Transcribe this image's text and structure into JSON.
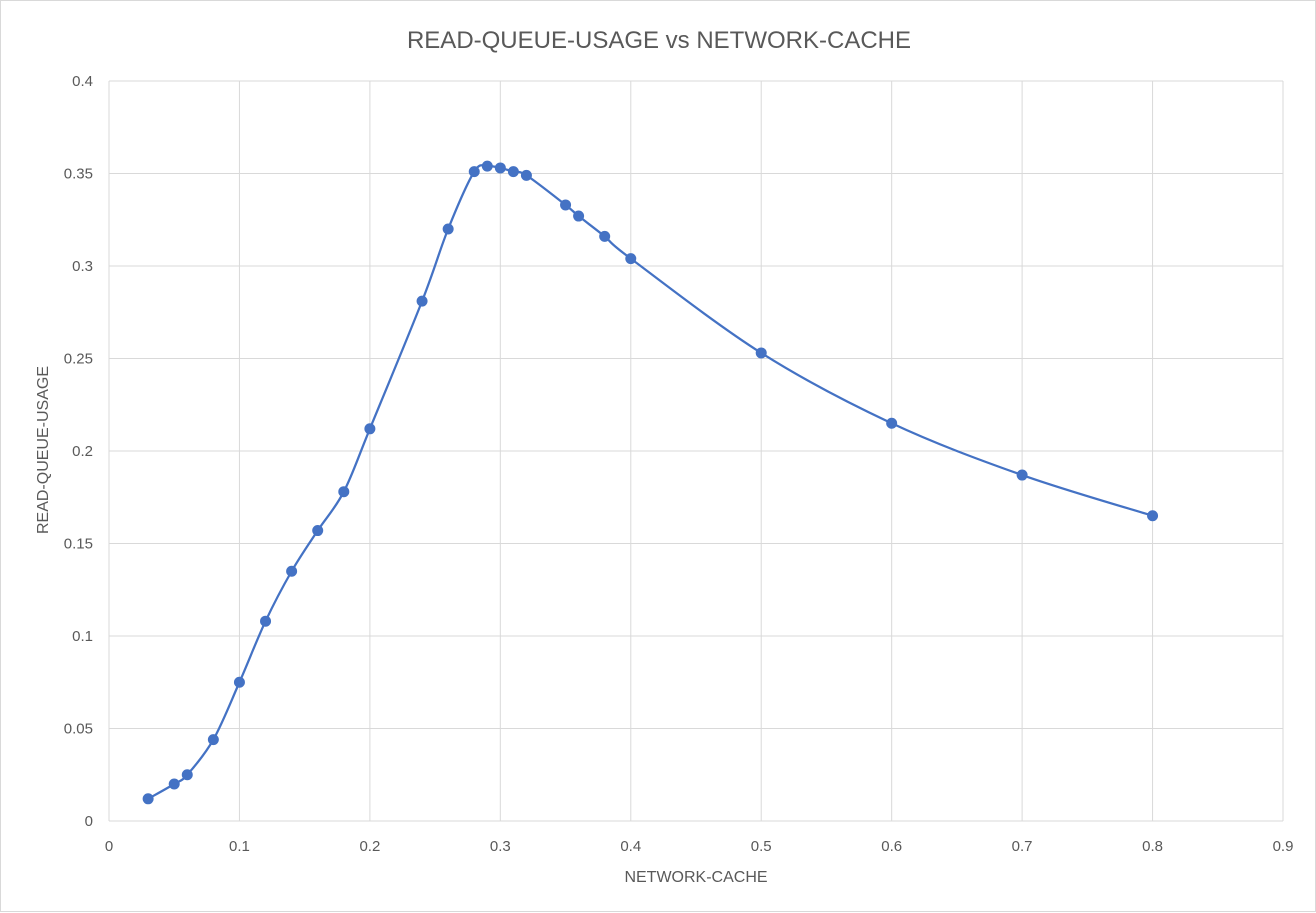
{
  "chart_data": {
    "type": "scatter",
    "title": "READ-QUEUE-USAGE vs NETWORK-CACHE",
    "xlabel": "NETWORK-CACHE",
    "ylabel": "READ-QUEUE-USAGE",
    "xlim": [
      0,
      0.9
    ],
    "ylim": [
      0,
      0.4
    ],
    "x_ticks": [
      0,
      0.1,
      0.2,
      0.3,
      0.4,
      0.5,
      0.6,
      0.7,
      0.8,
      0.9
    ],
    "y_ticks": [
      0,
      0.05,
      0.1,
      0.15,
      0.2,
      0.25,
      0.3,
      0.35,
      0.4
    ],
    "x_tick_labels": [
      "0",
      "0.1",
      "0.2",
      "0.3",
      "0.4",
      "0.5",
      "0.6",
      "0.7",
      "0.8",
      "0.9"
    ],
    "y_tick_labels": [
      "0",
      "0.05",
      "0.1",
      "0.15",
      "0.2",
      "0.25",
      "0.3",
      "0.35",
      "0.4"
    ],
    "grid": true,
    "smooth_line": true,
    "markers": true,
    "legend": "none",
    "series": [
      {
        "color": "#4472C4",
        "points": [
          {
            "x": 0.03,
            "y": 0.012
          },
          {
            "x": 0.05,
            "y": 0.02
          },
          {
            "x": 0.06,
            "y": 0.025
          },
          {
            "x": 0.08,
            "y": 0.044
          },
          {
            "x": 0.1,
            "y": 0.075
          },
          {
            "x": 0.12,
            "y": 0.108
          },
          {
            "x": 0.14,
            "y": 0.135
          },
          {
            "x": 0.16,
            "y": 0.157
          },
          {
            "x": 0.18,
            "y": 0.178
          },
          {
            "x": 0.2,
            "y": 0.212
          },
          {
            "x": 0.24,
            "y": 0.281
          },
          {
            "x": 0.26,
            "y": 0.32
          },
          {
            "x": 0.28,
            "y": 0.351
          },
          {
            "x": 0.29,
            "y": 0.354
          },
          {
            "x": 0.3,
            "y": 0.353
          },
          {
            "x": 0.31,
            "y": 0.351
          },
          {
            "x": 0.32,
            "y": 0.349
          },
          {
            "x": 0.35,
            "y": 0.333
          },
          {
            "x": 0.36,
            "y": 0.327
          },
          {
            "x": 0.38,
            "y": 0.316
          },
          {
            "x": 0.4,
            "y": 0.304
          },
          {
            "x": 0.5,
            "y": 0.253
          },
          {
            "x": 0.6,
            "y": 0.215
          },
          {
            "x": 0.7,
            "y": 0.187
          },
          {
            "x": 0.8,
            "y": 0.165
          }
        ]
      }
    ]
  }
}
